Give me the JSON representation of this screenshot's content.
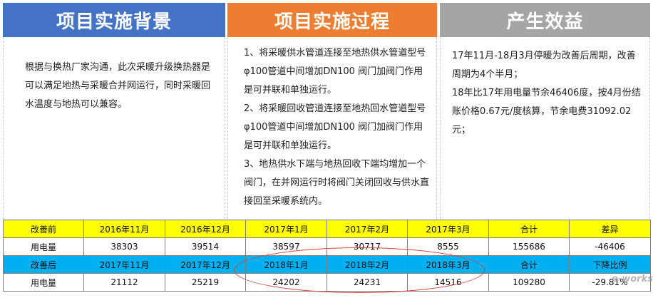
{
  "headers": {
    "background": "项目实施背景",
    "process": "项目实施过程",
    "benefit": "产生效益"
  },
  "colors": {
    "header_background": "#4472c4",
    "header_process": "#ed7d31",
    "header_benefit": "#a5a5a5",
    "row_before": "#ffff00",
    "row_after": "#00b0f0",
    "ring": "#e0403a"
  },
  "background_text": "根据与换热厂家沟通，此次采暖升级换热器是可以满足地热与采暖合并网运行，同时采暖回水温度与地热可以兼容。",
  "process_steps": [
    "1、将采暖供水管道连接至地热供水管道型号φ100管道中间增加DN100 阀门加阀门作用是可并联和单独运行。",
    "2、将采暖回收管道连接至地热回水管道型号φ100管道中间增加DN100 阀门加阀门作用是可并联和单独运行。",
    "3、地热供水下端与地热回收下端均增加一个阀门，在并网运行时将阀门关闭回收与供水直接回至采暖系统内。"
  ],
  "benefit_lines": [
    "17年11月-18月3月停暖为改善后周期，改善周期为4个半月；",
    "18年比17年用电量节余46406度，按4月份结账价格0.67元/度核算，节余电费31092.02元；"
  ],
  "table": {
    "before_header": [
      "改善前",
      "2016年11月",
      "2016年12月",
      "2017年1月",
      "2017年2月",
      "2017年3月",
      "合计",
      "差异"
    ],
    "before_values": [
      "用电量",
      "38303",
      "39514",
      "38597",
      "30717",
      "8555",
      "155686",
      "-46406"
    ],
    "after_header": [
      "改善后",
      "2017年11月",
      "2017年12月",
      "2018年1月",
      "2018年2月",
      "2018年3月",
      "合计",
      "下降比例"
    ],
    "after_values": [
      "用电量",
      "21112",
      "25219",
      "24202",
      "24231",
      "14516",
      "109280",
      "-29.81%"
    ]
  },
  "watermark": "e-works"
}
